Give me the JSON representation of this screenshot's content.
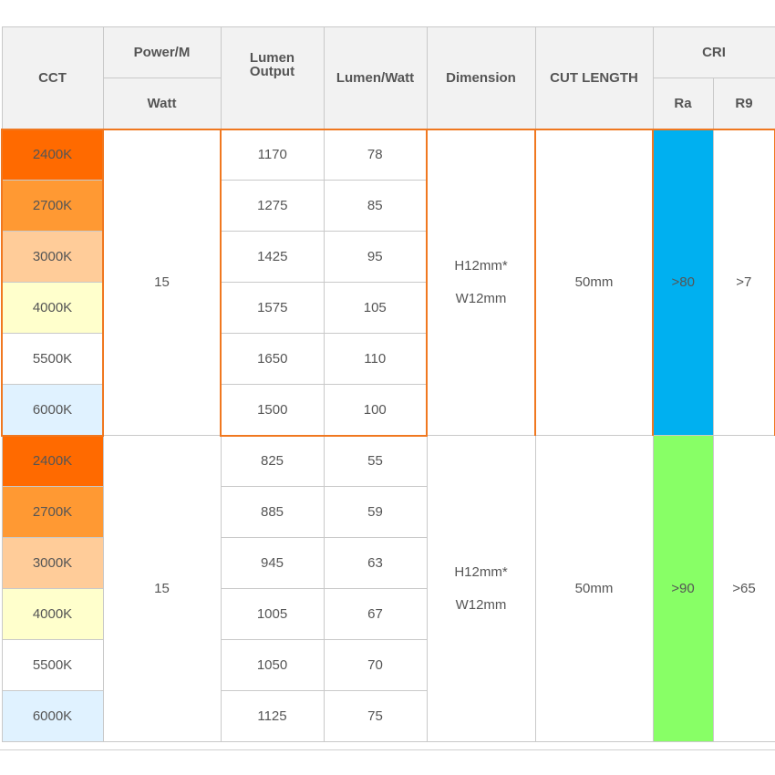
{
  "headers": {
    "cct": "CCT",
    "power_top": "Power/M",
    "power_bottom": "Watt",
    "lumen_output": "Lumen Output",
    "lumen_watt": "Lumen/Watt",
    "dimension": "Dimension",
    "cut_length": "CUT LENGTH",
    "cri": "CRI",
    "ra": "Ra",
    "r9": "R9"
  },
  "colors": {
    "2400K": "#ff6a00",
    "2700K": "#ff9933",
    "3000K": "#ffcc99",
    "4000K": "#ffffcc",
    "5500K": "#ffffff",
    "6000K": "#e0f2ff",
    "ra_group1": "#00b0f0",
    "ra_group2": "#88ff66",
    "group_border": "#f07820"
  },
  "groups": [
    {
      "power": "15",
      "dimension_line1": "H12mm*",
      "dimension_line2": "W12mm",
      "cut_length": "50mm",
      "ra": ">80",
      "r9": ">7",
      "rows": [
        {
          "cct": "2400K",
          "lumen": "1170",
          "lpw": "78"
        },
        {
          "cct": "2700K",
          "lumen": "1275",
          "lpw": "85"
        },
        {
          "cct": "3000K",
          "lumen": "1425",
          "lpw": "95"
        },
        {
          "cct": "4000K",
          "lumen": "1575",
          "lpw": "105"
        },
        {
          "cct": "5500K",
          "lumen": "1650",
          "lpw": "110"
        },
        {
          "cct": "6000K",
          "lumen": "1500",
          "lpw": "100"
        }
      ]
    },
    {
      "power": "15",
      "dimension_line1": "H12mm*",
      "dimension_line2": "W12mm",
      "cut_length": "50mm",
      "ra": ">90",
      "r9": ">65",
      "rows": [
        {
          "cct": "2400K",
          "lumen": "825",
          "lpw": "55"
        },
        {
          "cct": "2700K",
          "lumen": "885",
          "lpw": "59"
        },
        {
          "cct": "3000K",
          "lumen": "945",
          "lpw": "63"
        },
        {
          "cct": "4000K",
          "lumen": "1005",
          "lpw": "67"
        },
        {
          "cct": "5500K",
          "lumen": "1050",
          "lpw": "70"
        },
        {
          "cct": "6000K",
          "lumen": "1125",
          "lpw": "75"
        }
      ]
    }
  ]
}
